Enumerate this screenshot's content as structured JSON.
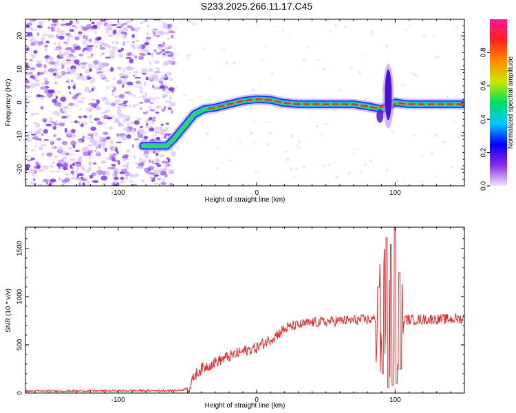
{
  "figure_title": "S233.2025.266.11.17.C45",
  "colors": {
    "snr_line": "#e8292b",
    "ridge_high": "#e53a2a",
    "ridge_mid": "#3ad06a",
    "ridge_edge": "#1a2cff",
    "noise": "#9b4dff"
  },
  "chart_data": [
    {
      "type": "heatmap",
      "title": "S233.2025.266.11.17.C45",
      "xlabel": "Height of straight line (km)",
      "ylabel": "Frequency (Hz)",
      "xlim": [
        -167,
        150
      ],
      "ylim": [
        -25,
        25
      ],
      "xticks": [
        -100,
        0,
        100
      ],
      "yticks": [
        -20,
        -10,
        0,
        10,
        20
      ],
      "xtick_labels": [
        "-100",
        "0",
        "100"
      ],
      "ytick_labels": [
        "-20",
        "-10",
        "0",
        "10",
        "20"
      ],
      "noise_region_x": [
        -167,
        -60
      ],
      "ridge": {
        "x": [
          -82,
          -65,
          -60,
          -52,
          -45,
          -38,
          -30,
          -20,
          -10,
          0,
          10,
          18,
          30,
          50,
          70,
          78,
          85,
          90,
          100,
          110,
          150
        ],
        "y": [
          -13,
          -13,
          -11,
          -7,
          -3.5,
          -2,
          -1.5,
          -0.5,
          0.5,
          1,
          0.8,
          0,
          -0.5,
          -0.5,
          -0.5,
          -1,
          -1.5,
          -2,
          0,
          -0.5,
          -0.5
        ]
      },
      "disturbance": {
        "x": 98,
        "y_range": [
          -4,
          12
        ]
      },
      "colorbar": {
        "label": "Normalized spectral amplitude",
        "range": [
          0,
          1
        ],
        "ticks": [
          0.0,
          0.2,
          0.4,
          0.6,
          0.8
        ],
        "tick_labels": [
          "0.0",
          "0.2",
          "0.4",
          "0.6",
          "0.8"
        ],
        "colormap": [
          "#efe3ff",
          "#8a2be2",
          "#0000ff",
          "#00c8ff",
          "#00e060",
          "#c8e800",
          "#ff8c00",
          "#ff2020",
          "#ff1493"
        ]
      }
    },
    {
      "type": "line",
      "title": "",
      "xlabel": "Height of straight line (km)",
      "ylabel": "SNR (10 * v/v)",
      "xlim": [
        -167,
        150
      ],
      "ylim": [
        0,
        1720
      ],
      "xticks": [
        -100,
        0,
        100
      ],
      "yticks": [
        0,
        500,
        1000,
        1500
      ],
      "xtick_labels": [
        "-100",
        "0",
        "100"
      ],
      "ytick_labels": [
        "0",
        "500",
        "1000",
        "1500"
      ],
      "series": [
        {
          "name": "SNR",
          "trend": {
            "x": [
              -167,
              -60,
              -54,
              -48,
              -45,
              -40,
              -30,
              -20,
              -10,
              0,
              10,
              20,
              25,
              40,
              60,
              80,
              88,
              92,
              108,
              150
            ],
            "y": [
              20,
              25,
              30,
              60,
              180,
              250,
              320,
              380,
              430,
              470,
              560,
              660,
              690,
              730,
              750,
              760,
              770,
              800,
              760,
              770
            ]
          },
          "spikes": [
            {
              "x": 88,
              "y": 1100
            },
            {
              "x": 91,
              "y": 200
            },
            {
              "x": 94,
              "y": 1610
            },
            {
              "x": 95,
              "y": 60
            },
            {
              "x": 97,
              "y": 1540
            },
            {
              "x": 98,
              "y": 80
            },
            {
              "x": 100,
              "y": 1720
            },
            {
              "x": 101,
              "y": 100
            },
            {
              "x": 103,
              "y": 1250
            },
            {
              "x": 104,
              "y": 250
            }
          ]
        }
      ]
    }
  ]
}
